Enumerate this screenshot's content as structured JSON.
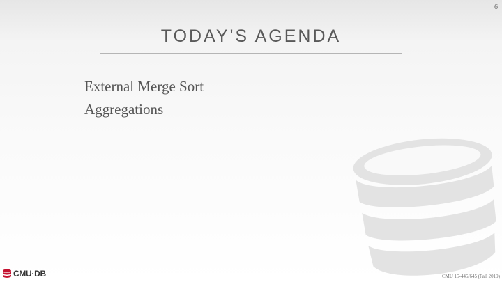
{
  "slide": {
    "page_number": "6",
    "title": "TODAY'S AGENDA",
    "bullets": [
      {
        "text": "External Merge Sort"
      },
      {
        "text": "Aggregations"
      }
    ]
  },
  "logo": {
    "text": "CMU·DB",
    "icon": "database-icon",
    "color": "#c41230"
  },
  "footer": {
    "course": "CMU 15-445/645 (Fall 2019)"
  },
  "watermark": {
    "icon": "database-icon",
    "color": "#e3e3e3"
  }
}
